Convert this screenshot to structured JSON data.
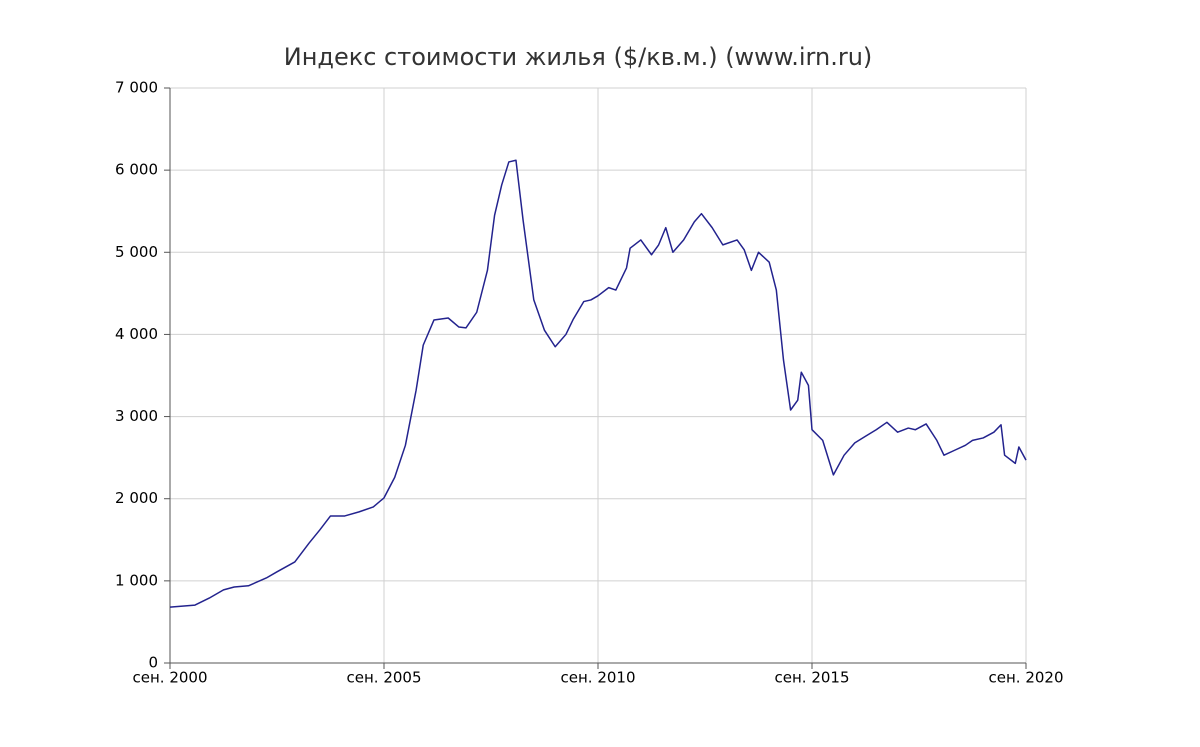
{
  "chart_data": {
    "type": "line",
    "title": "Индекс стоимости жилья ($/кв.м.) (www.irn.ru)",
    "x": [
      "2000-09",
      "2001-04",
      "2001-08",
      "2001-12",
      "2002-03",
      "2002-07",
      "2002-12",
      "2003-03",
      "2003-08",
      "2003-12",
      "2004-03",
      "2004-06",
      "2004-10",
      "2005-02",
      "2005-06",
      "2005-09",
      "2005-12",
      "2006-03",
      "2006-06",
      "2006-08",
      "2006-11",
      "2007-03",
      "2007-06",
      "2007-08",
      "2007-11",
      "2008-02",
      "2008-04",
      "2008-06",
      "2008-08",
      "2008-10",
      "2008-12",
      "2009-03",
      "2009-06",
      "2009-09",
      "2009-12",
      "2010-02",
      "2010-05",
      "2010-07",
      "2010-09",
      "2010-12",
      "2011-02",
      "2011-05",
      "2011-06",
      "2011-09",
      "2011-12",
      "2012-02",
      "2012-04",
      "2012-06",
      "2012-09",
      "2012-12",
      "2013-02",
      "2013-05",
      "2013-08",
      "2013-12",
      "2014-02",
      "2014-04",
      "2014-06",
      "2014-09",
      "2014-11",
      "2015-01",
      "2015-03",
      "2015-05",
      "2015-06",
      "2015-08",
      "2015-09",
      "2015-12",
      "2016-03",
      "2016-06",
      "2016-09",
      "2016-12",
      "2017-03",
      "2017-06",
      "2017-09",
      "2017-12",
      "2018-02",
      "2018-05",
      "2018-08",
      "2018-10",
      "2019-01",
      "2019-04",
      "2019-06",
      "2019-09",
      "2019-12",
      "2020-02",
      "2020-03",
      "2020-06",
      "2020-07",
      "2020-09"
    ],
    "series": [
      {
        "color": "#23238e",
        "values": [
          680,
          705,
          790,
          890,
          925,
          940,
          1035,
          1110,
          1230,
          1460,
          1620,
          1790,
          1790,
          1840,
          1900,
          2010,
          2260,
          2650,
          3320,
          3870,
          4175,
          4200,
          4090,
          4080,
          4270,
          4780,
          5450,
          5820,
          6100,
          6120,
          5390,
          4420,
          4050,
          3850,
          4000,
          4180,
          4400,
          4420,
          4470,
          4570,
          4540,
          4810,
          5050,
          5150,
          4970,
          5090,
          5300,
          5000,
          5150,
          5370,
          5470,
          5300,
          5090,
          5150,
          5030,
          4780,
          5000,
          4880,
          4540,
          3690,
          3080,
          3200,
          3540,
          3380,
          2840,
          2710,
          2290,
          2530,
          2680,
          2760,
          2840,
          2930,
          2810,
          2860,
          2840,
          2910,
          2710,
          2530,
          2590,
          2650,
          2710,
          2740,
          2810,
          2900,
          2530,
          2430,
          2630,
          2470
        ]
      }
    ],
    "xlim": [
      "2000-09",
      "2020-09"
    ],
    "xticks": [
      {
        "value": "2000-09",
        "label": "сен. 2000"
      },
      {
        "value": "2005-09",
        "label": "сен. 2005"
      },
      {
        "value": "2010-09",
        "label": "сен. 2010"
      },
      {
        "value": "2015-09",
        "label": "сен. 2015"
      },
      {
        "value": "2020-09",
        "label": "сен. 2020"
      }
    ],
    "ylim": [
      0,
      7000
    ],
    "yticks": [
      0,
      {
        "value": 1000,
        "label": "1 000"
      },
      {
        "value": 2000,
        "label": "2 000"
      },
      {
        "value": 3000,
        "label": "3 000"
      },
      {
        "value": 4000,
        "label": "4 000"
      },
      {
        "value": 5000,
        "label": "5 000"
      },
      {
        "value": 6000,
        "label": "6 000"
      },
      {
        "value": 7000,
        "label": "7 000"
      }
    ],
    "grid": true
  }
}
